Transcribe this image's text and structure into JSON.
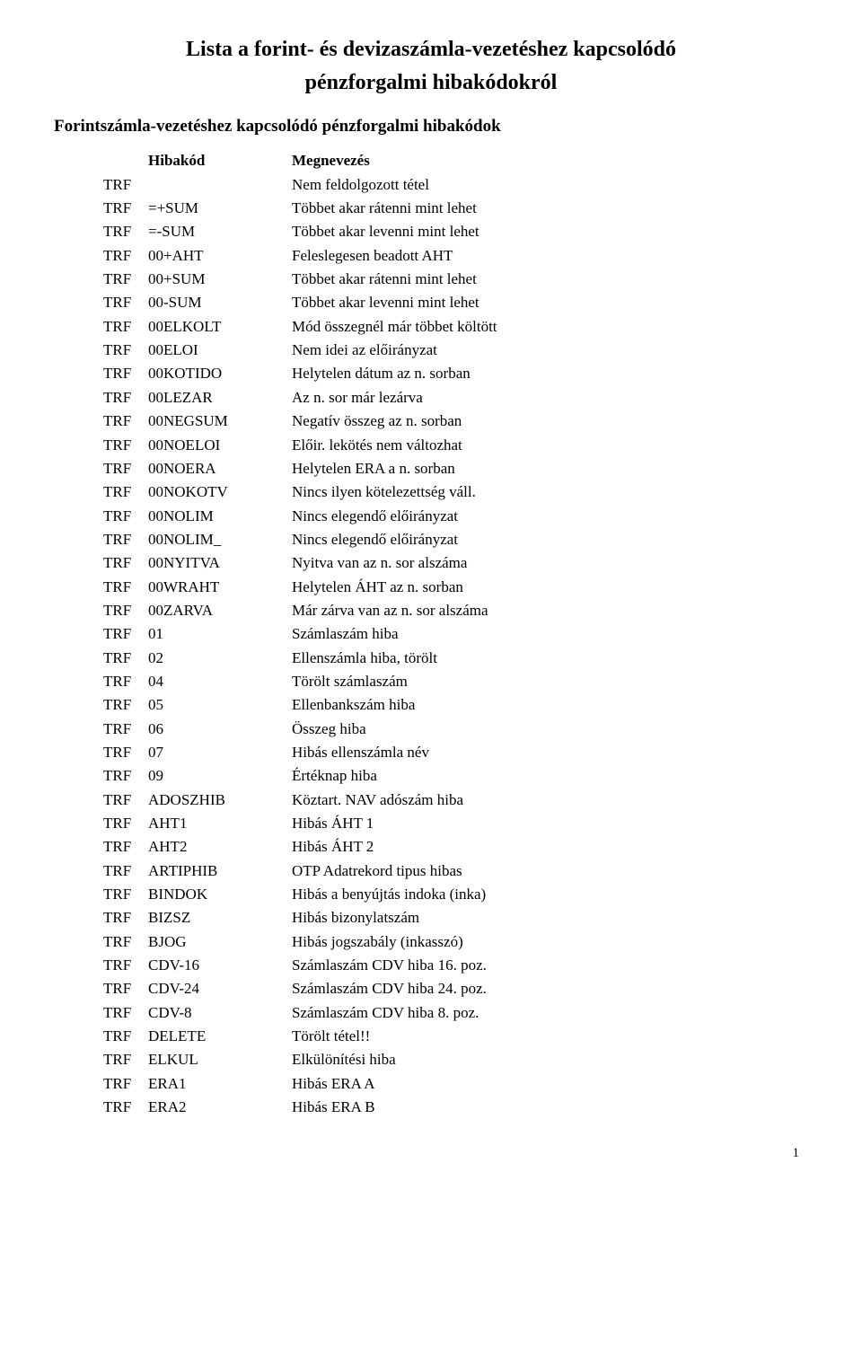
{
  "title_line1": "Lista a forint- és devizaszámla-vezetéshez kapcsolódó",
  "title_line2": "pénzforgalmi hibakódokról",
  "section_heading": "Forintszámla-vezetéshez kapcsolódó pénzforgalmi hibakódok",
  "header": {
    "code": "Hibakód",
    "name": "Megnevezés"
  },
  "rows": [
    {
      "prefix": "TRF",
      "code": "",
      "name": "Nem feldolgozott tétel"
    },
    {
      "prefix": "TRF",
      "code": "=+SUM",
      "name": "Többet akar rátenni mint lehet"
    },
    {
      "prefix": "TRF",
      "code": "=-SUM",
      "name": "Többet akar levenni mint lehet"
    },
    {
      "prefix": "TRF",
      "code": "00+AHT",
      "name": "Feleslegesen beadott AHT"
    },
    {
      "prefix": "TRF",
      "code": "00+SUM",
      "name": "Többet akar rátenni mint lehet"
    },
    {
      "prefix": "TRF",
      "code": "00-SUM",
      "name": "Többet akar levenni mint lehet"
    },
    {
      "prefix": "TRF",
      "code": "00ELKOLT",
      "name": "Mód összegnél már többet költött"
    },
    {
      "prefix": "TRF",
      "code": "00ELOI",
      "name": "Nem idei az előirányzat"
    },
    {
      "prefix": "TRF",
      "code": "00KOTIDO",
      "name": "Helytelen dátum az n. sorban"
    },
    {
      "prefix": "TRF",
      "code": "00LEZAR",
      "name": "Az n. sor már lezárva"
    },
    {
      "prefix": "TRF",
      "code": "00NEGSUM",
      "name": "Negatív összeg az n. sorban"
    },
    {
      "prefix": "TRF",
      "code": "00NOELOI",
      "name": "Előir. lekötés nem változhat"
    },
    {
      "prefix": "TRF",
      "code": "00NOERA",
      "name": "Helytelen ERA a n. sorban"
    },
    {
      "prefix": "TRF",
      "code": "00NOKOTV",
      "name": "Nincs ilyen kötelezettség váll."
    },
    {
      "prefix": "TRF",
      "code": "00NOLIM",
      "name": "Nincs elegendő előirányzat"
    },
    {
      "prefix": "TRF",
      "code": "00NOLIM_",
      "name": "Nincs elegendő előirányzat"
    },
    {
      "prefix": "TRF",
      "code": "00NYITVA",
      "name": "Nyitva van az n. sor alszáma"
    },
    {
      "prefix": "TRF",
      "code": "00WRAHT",
      "name": "Helytelen ÁHT az n. sorban"
    },
    {
      "prefix": "TRF",
      "code": "00ZARVA",
      "name": "Már zárva van az n. sor alszáma"
    },
    {
      "prefix": "TRF",
      "code": "01",
      "name": "Számlaszám hiba"
    },
    {
      "prefix": "TRF",
      "code": "02",
      "name": "Ellenszámla hiba, törölt"
    },
    {
      "prefix": "TRF",
      "code": "04",
      "name": "Törölt számlaszám"
    },
    {
      "prefix": "TRF",
      "code": "05",
      "name": "Ellenbankszám hiba"
    },
    {
      "prefix": "TRF",
      "code": "06",
      "name": "Összeg hiba"
    },
    {
      "prefix": "TRF",
      "code": "07",
      "name": "Hibás ellenszámla név"
    },
    {
      "prefix": "TRF",
      "code": "09",
      "name": "Értéknap hiba"
    },
    {
      "prefix": "TRF",
      "code": "ADOSZHIB",
      "name": "Köztart. NAV adószám hiba"
    },
    {
      "prefix": "TRF",
      "code": "AHT1",
      "name": "Hibás ÁHT 1"
    },
    {
      "prefix": "TRF",
      "code": "AHT2",
      "name": "Hibás ÁHT 2"
    },
    {
      "prefix": "TRF",
      "code": "ARTIPHIB",
      "name": "OTP Adatrekord tipus hibas"
    },
    {
      "prefix": "TRF",
      "code": "BINDOK",
      "name": "Hibás a benyújtás indoka (inka)"
    },
    {
      "prefix": "TRF",
      "code": "BIZSZ",
      "name": "Hibás bizonylatszám"
    },
    {
      "prefix": "TRF",
      "code": "BJOG",
      "name": "Hibás jogszabály (inkasszó)"
    },
    {
      "prefix": "TRF",
      "code": "CDV-16",
      "name": "Számlaszám CDV hiba 16. poz."
    },
    {
      "prefix": "TRF",
      "code": "CDV-24",
      "name": "Számlaszám CDV hiba 24. poz."
    },
    {
      "prefix": "TRF",
      "code": "CDV-8",
      "name": "Számlaszám CDV hiba  8. poz."
    },
    {
      "prefix": "TRF",
      "code": "DELETE",
      "name": "Törölt tétel!!"
    },
    {
      "prefix": "TRF",
      "code": "ELKUL",
      "name": "Elkülönítési hiba"
    },
    {
      "prefix": "TRF",
      "code": "ERA1",
      "name": "Hibás ERA A"
    },
    {
      "prefix": "TRF",
      "code": "ERA2",
      "name": "Hibás ERA B"
    }
  ],
  "page_number": "1"
}
